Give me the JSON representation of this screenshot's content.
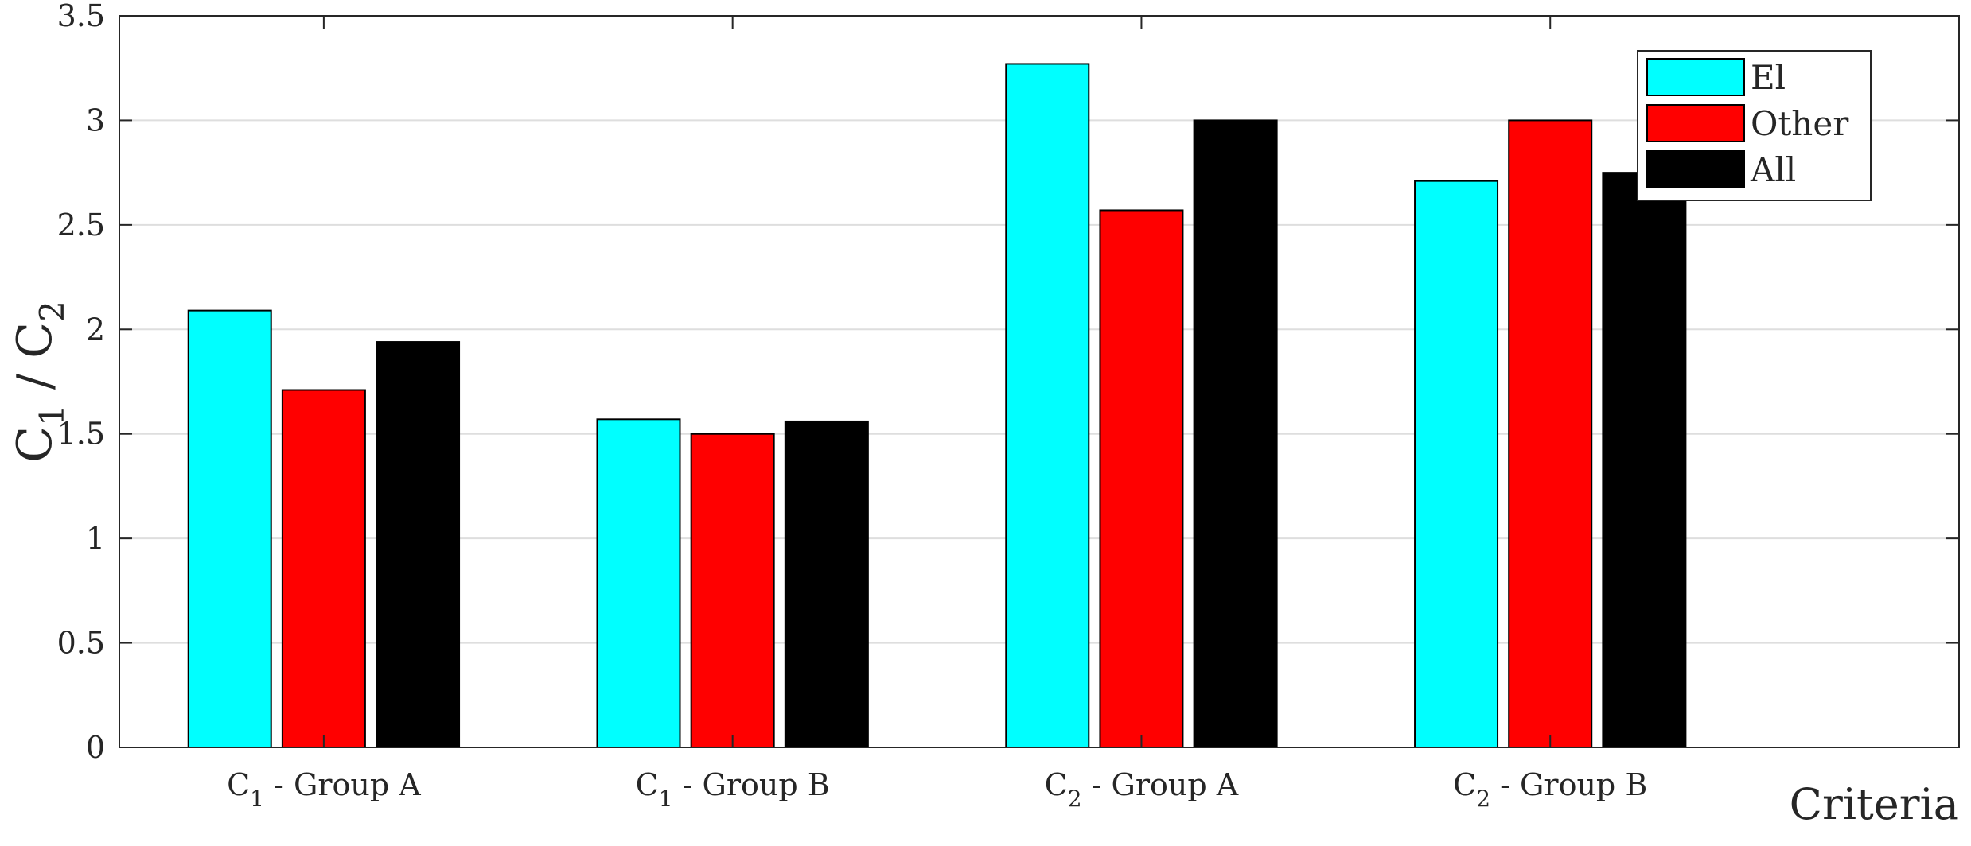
{
  "chart_data": {
    "type": "bar",
    "title": "",
    "categories": [
      {
        "main": "C",
        "sub": "1",
        "rest": " - Group A"
      },
      {
        "main": "C",
        "sub": "1",
        "rest": " - Group B"
      },
      {
        "main": "C",
        "sub": "2",
        "rest": " - Group A"
      },
      {
        "main": "C",
        "sub": "2",
        "rest": " - Group B"
      }
    ],
    "series": [
      {
        "name": "El",
        "color": "#00ffff",
        "values": [
          2.09,
          1.57,
          3.27,
          2.71
        ]
      },
      {
        "name": "Other",
        "color": "#ff0000",
        "values": [
          1.71,
          1.5,
          2.57,
          3.0
        ]
      },
      {
        "name": "All",
        "color": "#000000",
        "values": [
          1.94,
          1.56,
          3.0,
          2.75
        ]
      }
    ],
    "ylabel": {
      "p1": "C",
      "s1": "1",
      "p2": " / C",
      "s2": "2"
    },
    "xlabel": "Criteria",
    "ylim": [
      0,
      3.5
    ],
    "xlim": [
      0.5,
      5
    ],
    "yticks": [
      "0",
      "0.5",
      "1",
      "1.5",
      "2",
      "2.5",
      "3",
      "3.5"
    ],
    "grid": "horizontal",
    "legend_position": "top-right"
  }
}
